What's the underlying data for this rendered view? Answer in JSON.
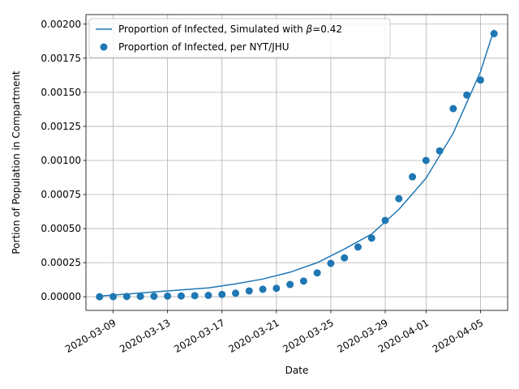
{
  "chart_data": {
    "type": "scatter",
    "title": "",
    "xlabel": "Date",
    "ylabel": "Portion of Population in Compartment",
    "grid": true,
    "legend_position": "top-left",
    "xlim": [
      "2020-03-07",
      "2020-04-07"
    ],
    "ylim": [
      -0.0001,
      0.00207
    ],
    "x_ticks": [
      {
        "date": "2020-03-09",
        "label": "2020-03-09"
      },
      {
        "date": "2020-03-13",
        "label": "2020-03-13"
      },
      {
        "date": "2020-03-17",
        "label": "2020-03-17"
      },
      {
        "date": "2020-03-21",
        "label": "2020-03-21"
      },
      {
        "date": "2020-03-25",
        "label": "2020-03-25"
      },
      {
        "date": "2020-03-29",
        "label": "2020-03-29"
      },
      {
        "date": "2020-04-01",
        "label": "2020-04-01"
      },
      {
        "date": "2020-04-05",
        "label": "2020-04-05"
      }
    ],
    "y_ticks": [
      {
        "value": 0.0,
        "label": "0.00000"
      },
      {
        "value": 0.00025,
        "label": "0.00025"
      },
      {
        "value": 0.0005,
        "label": "0.00050"
      },
      {
        "value": 0.00075,
        "label": "0.00075"
      },
      {
        "value": 0.001,
        "label": "0.00100"
      },
      {
        "value": 0.00125,
        "label": "0.00125"
      },
      {
        "value": 0.0015,
        "label": "0.00150"
      },
      {
        "value": 0.00175,
        "label": "0.00175"
      },
      {
        "value": 0.002,
        "label": "0.00200"
      }
    ],
    "series": [
      {
        "name_prefix": "Proportion of Infected, Simulated with ",
        "name_beta_symbol": "β",
        "name_beta_value": "=0.42",
        "kind": "line",
        "color": "#1f77b4",
        "points": [
          {
            "x": "2020-03-08",
            "y": 5e-06
          },
          {
            "x": "2020-03-10",
            "y": 2e-05
          },
          {
            "x": "2020-03-12",
            "y": 3.5e-05
          },
          {
            "x": "2020-03-14",
            "y": 5e-05
          },
          {
            "x": "2020-03-16",
            "y": 6.5e-05
          },
          {
            "x": "2020-03-18",
            "y": 9.5e-05
          },
          {
            "x": "2020-03-20",
            "y": 0.00013
          },
          {
            "x": "2020-03-22",
            "y": 0.00018
          },
          {
            "x": "2020-03-24",
            "y": 0.00025
          },
          {
            "x": "2020-03-26",
            "y": 0.00035
          },
          {
            "x": "2020-03-28",
            "y": 0.00046
          },
          {
            "x": "2020-03-30",
            "y": 0.00064
          },
          {
            "x": "2020-04-01",
            "y": 0.00087
          },
          {
            "x": "2020-04-03",
            "y": 0.0012
          },
          {
            "x": "2020-04-05",
            "y": 0.00165
          },
          {
            "x": "2020-04-06",
            "y": 0.00196
          }
        ]
      },
      {
        "name": "Proportion of Infected, per NYT/JHU",
        "kind": "scatter",
        "color": "#1f77b4",
        "points": [
          {
            "x": "2020-03-08",
            "y": 0.0
          },
          {
            "x": "2020-03-09",
            "y": 1e-06
          },
          {
            "x": "2020-03-10",
            "y": 2e-06
          },
          {
            "x": "2020-03-11",
            "y": 3e-06
          },
          {
            "x": "2020-03-12",
            "y": 4e-06
          },
          {
            "x": "2020-03-13",
            "y": 5e-06
          },
          {
            "x": "2020-03-14",
            "y": 6e-06
          },
          {
            "x": "2020-03-15",
            "y": 8e-06
          },
          {
            "x": "2020-03-16",
            "y": 1e-05
          },
          {
            "x": "2020-03-17",
            "y": 1.7e-05
          },
          {
            "x": "2020-03-18",
            "y": 2.6e-05
          },
          {
            "x": "2020-03-19",
            "y": 4.3e-05
          },
          {
            "x": "2020-03-20",
            "y": 5.5e-05
          },
          {
            "x": "2020-03-21",
            "y": 6.2e-05
          },
          {
            "x": "2020-03-22",
            "y": 9e-05
          },
          {
            "x": "2020-03-23",
            "y": 0.000115
          },
          {
            "x": "2020-03-24",
            "y": 0.000175
          },
          {
            "x": "2020-03-25",
            "y": 0.000245
          },
          {
            "x": "2020-03-26",
            "y": 0.000285
          },
          {
            "x": "2020-03-27",
            "y": 0.000365
          },
          {
            "x": "2020-03-28",
            "y": 0.00043
          },
          {
            "x": "2020-03-29",
            "y": 0.00056
          },
          {
            "x": "2020-03-30",
            "y": 0.00072
          },
          {
            "x": "2020-03-31",
            "y": 0.00088
          },
          {
            "x": "2020-04-01",
            "y": 0.001
          },
          {
            "x": "2020-04-02",
            "y": 0.00107
          },
          {
            "x": "2020-04-03",
            "y": 0.00138
          },
          {
            "x": "2020-04-04",
            "y": 0.00148
          },
          {
            "x": "2020-04-05",
            "y": 0.00159
          },
          {
            "x": "2020-04-06",
            "y": 0.00193
          }
        ]
      }
    ]
  }
}
